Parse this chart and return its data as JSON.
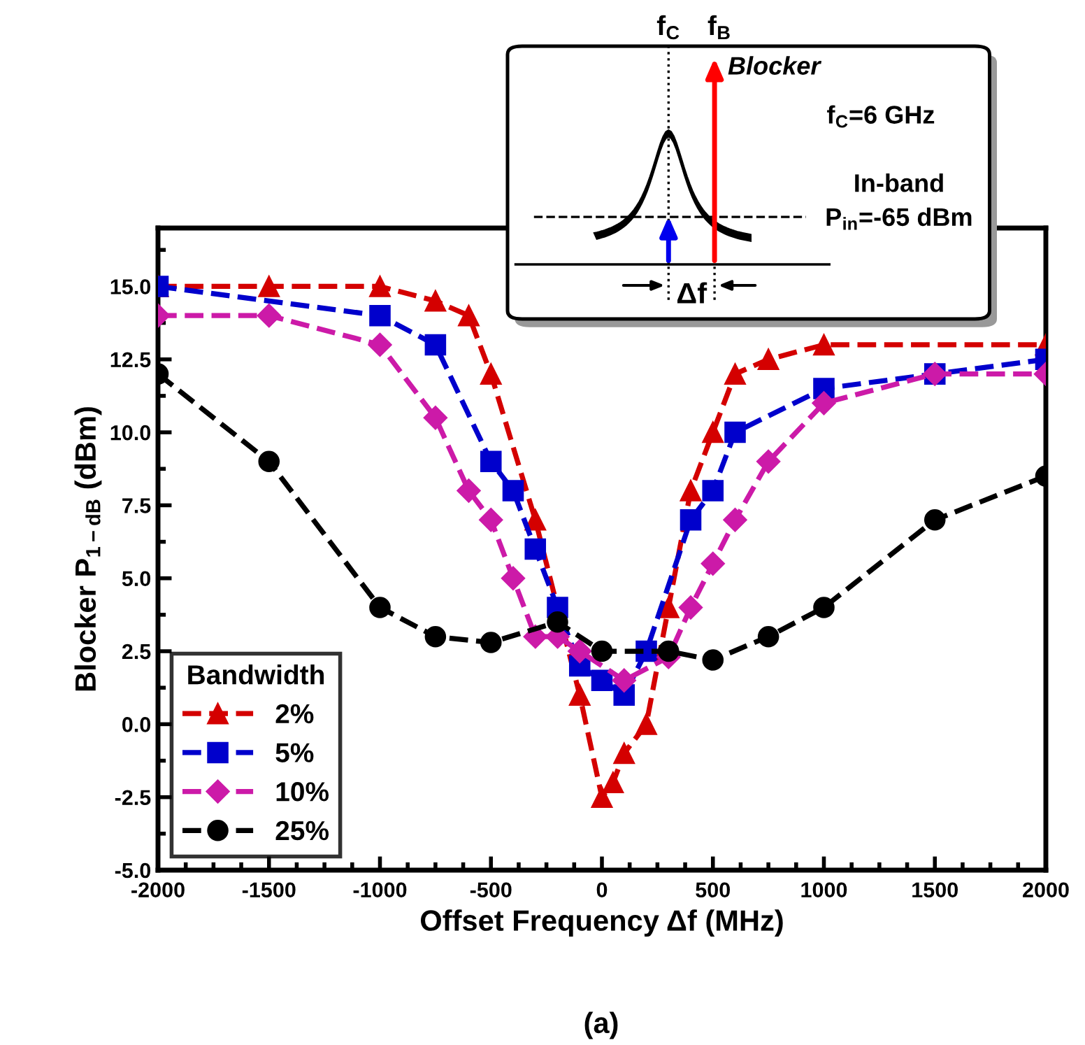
{
  "chart_data": {
    "type": "line",
    "xlabel": "Offset Frequency Δf (MHz)",
    "ylabel": "Blocker P$_{1−dB}$ (dBm)",
    "legend_title": "Bandwidth",
    "xlim": [
      -2000,
      2000
    ],
    "ylim": [
      -5,
      17
    ],
    "xticks": [
      -2000,
      -1500,
      -1000,
      -500,
      0,
      500,
      1000,
      1500,
      2000
    ],
    "yticks": [
      {
        "value": -5,
        "label": "-5.0"
      },
      {
        "value": -2.5,
        "label": "-2.5"
      },
      {
        "value": 0,
        "label": "0.0"
      },
      {
        "value": 2.5,
        "label": "2.5"
      },
      {
        "value": 5,
        "label": "5.0"
      },
      {
        "value": 7.5,
        "label": "7.5"
      },
      {
        "value": 10,
        "label": "10.0"
      },
      {
        "value": 12.5,
        "label": "12.5"
      },
      {
        "value": 15,
        "label": "15.0"
      }
    ],
    "grid": false,
    "legend": "bottom left",
    "line_style": "dashed",
    "series": [
      {
        "name": "2%",
        "color": "#d40000",
        "marker": "triangle",
        "x": [
          -2000,
          -1500,
          -1000,
          -750,
          -600,
          -500,
          -300,
          -100,
          0,
          50,
          100,
          200,
          300,
          400,
          500,
          600,
          750,
          1000,
          2000
        ],
        "values": [
          15,
          15,
          15,
          14.5,
          14,
          12,
          7,
          1,
          -2.5,
          -2,
          -1,
          0,
          4,
          8,
          10,
          12,
          12.5,
          13,
          13
        ]
      },
      {
        "name": "5%",
        "color": "#0000cc",
        "marker": "square",
        "x": [
          -2000,
          -1000,
          -750,
          -500,
          -400,
          -300,
          -200,
          -100,
          0,
          100,
          200,
          400,
          500,
          600,
          1000,
          1500,
          2000
        ],
        "values": [
          15,
          14,
          13,
          9,
          8,
          6,
          4,
          2,
          1.5,
          1,
          2.5,
          7,
          8,
          10,
          11.5,
          12,
          12.5
        ]
      },
      {
        "name": "10%",
        "color": "#cc1aa8",
        "marker": "diamond",
        "x": [
          -2000,
          -1500,
          -1000,
          -750,
          -600,
          -500,
          -400,
          -300,
          -200,
          -100,
          100,
          300,
          400,
          500,
          600,
          750,
          1000,
          1500,
          2000
        ],
        "values": [
          14,
          14,
          13,
          10.5,
          8,
          7,
          5,
          3,
          3,
          2.5,
          1.5,
          2.3,
          4,
          5.5,
          7,
          9,
          11,
          12,
          12
        ]
      },
      {
        "name": "25%",
        "color": "#000000",
        "marker": "circle",
        "x": [
          -2000,
          -1500,
          -1000,
          -750,
          -500,
          -200,
          0,
          300,
          500,
          750,
          1000,
          1500,
          2000
        ],
        "values": [
          12,
          9,
          4,
          3,
          2.8,
          3.5,
          2.5,
          2.5,
          2.2,
          3,
          4,
          7,
          8.5
        ]
      }
    ],
    "annotations": [
      "f$_{C}$",
      "f$_{B}$",
      "Blocker",
      "f$_{C}$=6 GHz",
      "In-band",
      "P$_{in}$=-65 dBm",
      "Δf",
      "(a)"
    ]
  }
}
